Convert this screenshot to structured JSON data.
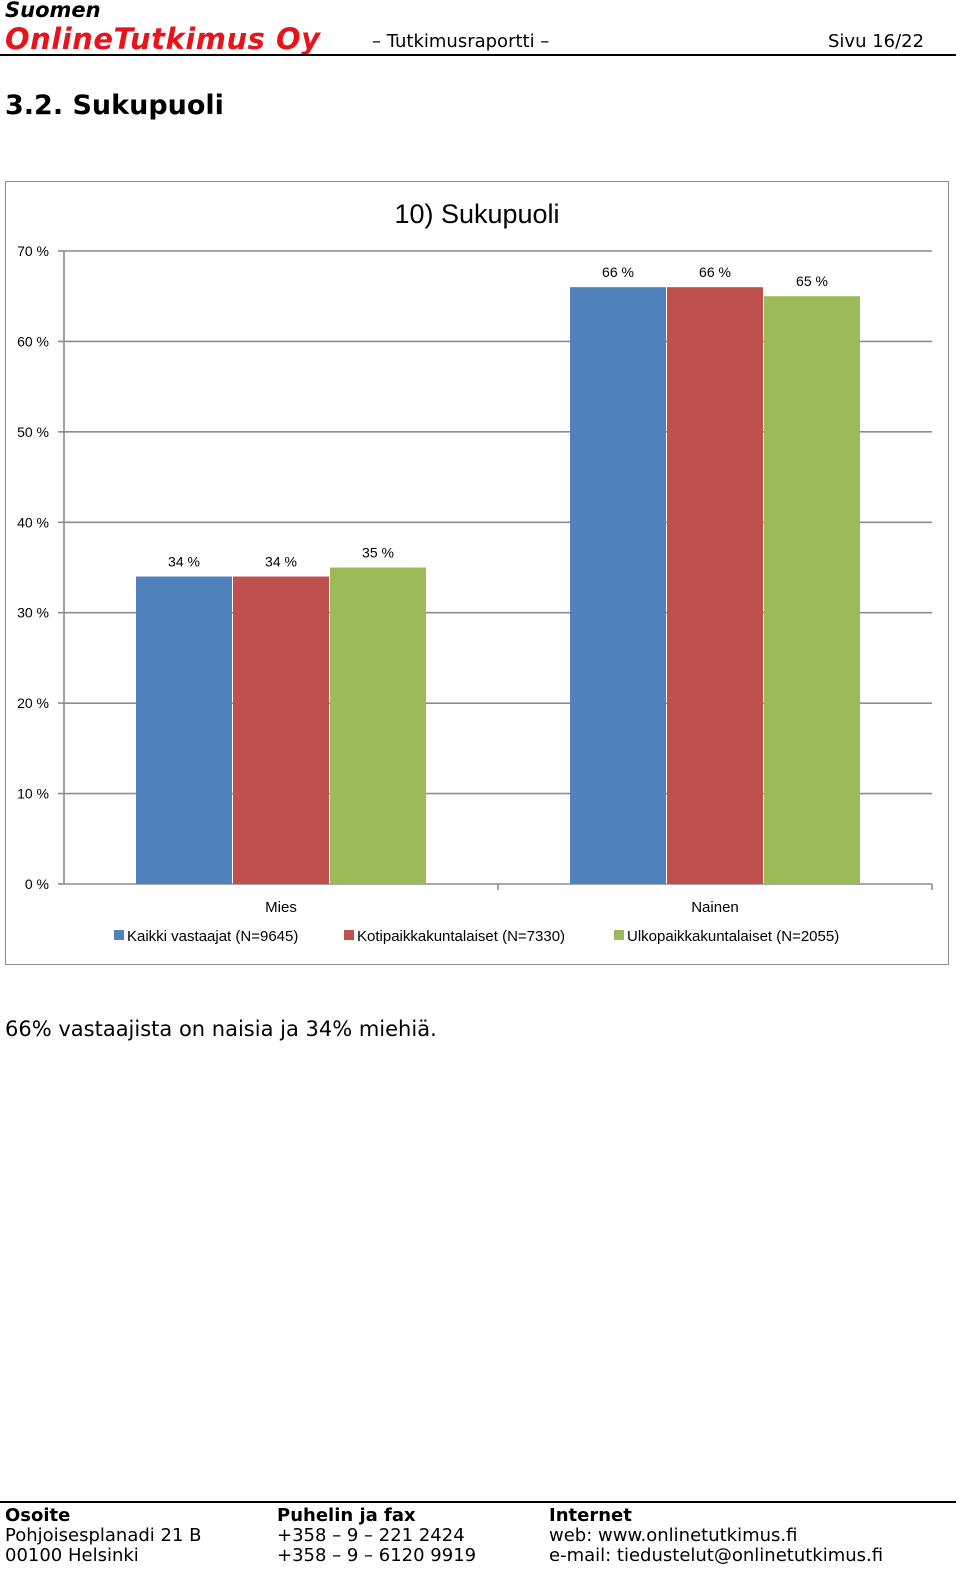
{
  "header": {
    "company_line1": "Suomen",
    "company_line2": "OnlineTutkimus Oy",
    "report_label": "– Tutkimusraportti –",
    "page_label": "Sivu 16/22"
  },
  "section_title": "3.2. Sukupuoli",
  "chart_data": {
    "type": "bar",
    "title": "10) Sukupuoli",
    "xlabel": "",
    "ylabel": "",
    "categories": [
      "Mies",
      "Nainen"
    ],
    "series": [
      {
        "name": "Kaikki vastaajat (N=9645)",
        "values": [
          34,
          66
        ],
        "labels": [
          "34 %",
          "66 %"
        ],
        "color": "#4f81bd"
      },
      {
        "name": "Kotipaikkakuntalaiset (N=7330)",
        "values": [
          34,
          66
        ],
        "labels": [
          "34 %",
          "66 %"
        ],
        "color": "#c0504d"
      },
      {
        "name": "Ulkopaikkakuntalaiset (N=2055)",
        "values": [
          35,
          65
        ],
        "labels": [
          "35 %",
          "65 %"
        ],
        "color": "#9bbb59"
      }
    ],
    "ylim": [
      0,
      70
    ],
    "yticks": [
      0,
      10,
      20,
      30,
      40,
      50,
      60,
      70
    ],
    "ytick_labels": [
      "0 %",
      "10 %",
      "20 %",
      "30 %",
      "40 %",
      "50 %",
      "60 %",
      "70 %"
    ],
    "grid": true,
    "legend": "bottom"
  },
  "summary": "66% vastaajista on naisia ja 34% miehiä.",
  "footer": {
    "address": {
      "heading": "Osoite",
      "line1": "Pohjoisesplanadi 21 B",
      "line2": "00100 Helsinki"
    },
    "phone": {
      "heading": "Puhelin ja fax",
      "line1": "+358 – 9 – 221 2424",
      "line2": "+358 – 9 – 6120 9919"
    },
    "internet": {
      "heading": "Internet",
      "line1": "web: www.onlinetutkimus.fi",
      "line2": "e-mail: tiedustelut@onlinetutkimus.fi"
    }
  }
}
